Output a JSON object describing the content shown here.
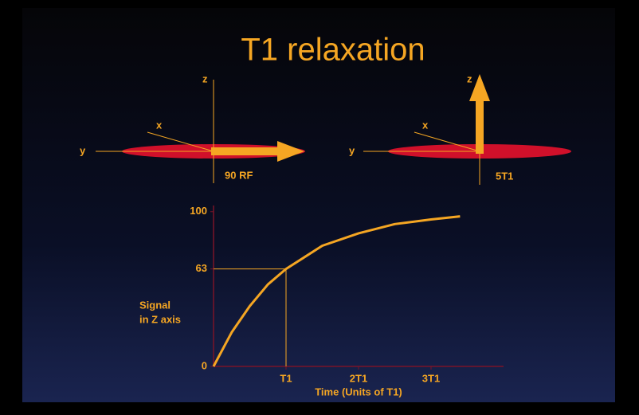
{
  "chart_data": {
    "type": "line",
    "title": "T1 relaxation",
    "x": [
      0,
      0.25,
      0.5,
      0.75,
      1,
      1.5,
      2,
      2.5,
      3,
      3.4
    ],
    "series": [
      {
        "name": "Signal",
        "color": "#f5a623",
        "values": [
          0,
          22,
          39,
          53,
          63,
          78,
          86,
          92,
          95,
          97
        ]
      }
    ],
    "xlim": [
      0,
      4
    ],
    "ylim": [
      0,
      104
    ],
    "xticks": [
      {
        "value": 1,
        "label": "T1"
      },
      {
        "value": 2,
        "label": "2T1"
      },
      {
        "value": 3,
        "label": "3T1"
      }
    ],
    "yticks": [
      0,
      63,
      100
    ],
    "ylabel": [
      "Signal",
      "in Z axis"
    ],
    "xlabel": "Time (Units of T1)"
  },
  "diagrams": [
    {
      "z": "z",
      "x": "x",
      "y": "y",
      "caption": "90 RF"
    },
    {
      "z": "z",
      "x": "x",
      "y": "y",
      "caption": "5T1"
    }
  ]
}
